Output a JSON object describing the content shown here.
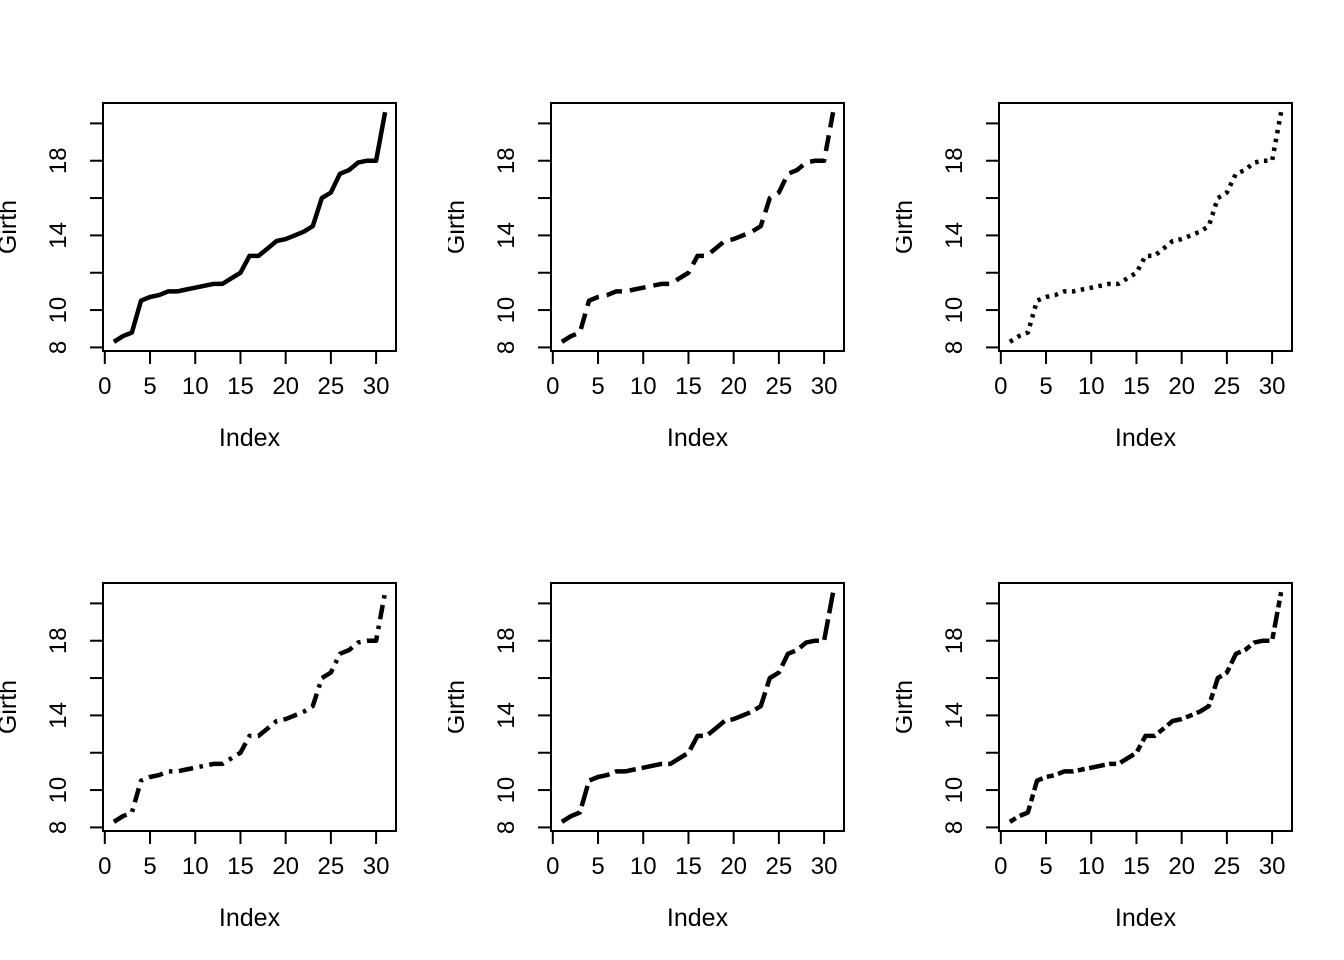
{
  "figure": {
    "background": "#ffffff",
    "line_color": "#000000",
    "rows": 2,
    "cols": 3,
    "panels": [
      {
        "id": "panel-1",
        "position": "top-left",
        "line_type": "solid"
      },
      {
        "id": "panel-2",
        "position": "top-middle",
        "line_type": "dashed"
      },
      {
        "id": "panel-3",
        "position": "top-right",
        "line_type": "dotted"
      },
      {
        "id": "panel-4",
        "position": "bottom-left",
        "line_type": "dotdash"
      },
      {
        "id": "panel-5",
        "position": "bottom-middle",
        "line_type": "longdash"
      },
      {
        "id": "panel-6",
        "position": "bottom-right",
        "line_type": "twodash"
      }
    ]
  },
  "chart_data": [
    {
      "type": "line",
      "title": "",
      "xlabel": "Index",
      "ylabel": "Girth",
      "line_type": "solid",
      "line_width": 3,
      "grid": false,
      "legend": "none",
      "xlim": [
        -0.2,
        32.2
      ],
      "ylim": [
        7.808,
        21.092
      ],
      "x_ticks": [
        0,
        5,
        10,
        15,
        20,
        25,
        30
      ],
      "x_tick_labels": [
        "0",
        "5",
        "10",
        "15",
        "20",
        "25",
        "30"
      ],
      "y_ticks": [
        8,
        10,
        12,
        14,
        16,
        18,
        20
      ],
      "y_tick_labels": [
        "8",
        "10",
        "",
        "14",
        "",
        "18",
        ""
      ],
      "x": [
        1,
        2,
        3,
        4,
        5,
        6,
        7,
        8,
        9,
        10,
        11,
        12,
        13,
        14,
        15,
        16,
        17,
        18,
        19,
        20,
        21,
        22,
        23,
        24,
        25,
        26,
        27,
        28,
        29,
        30,
        31
      ],
      "values": [
        8.3,
        8.6,
        8.8,
        10.5,
        10.7,
        10.8,
        11,
        11,
        11.1,
        11.2,
        11.3,
        11.4,
        11.4,
        11.7,
        12,
        12.9,
        12.9,
        13.3,
        13.7,
        13.8,
        14,
        14.2,
        14.5,
        16,
        16.3,
        17.3,
        17.5,
        17.9,
        18,
        18,
        20.6
      ]
    },
    {
      "type": "line",
      "title": "",
      "xlabel": "Index",
      "ylabel": "Girth",
      "line_type": "dashed",
      "line_width": 3,
      "grid": false,
      "legend": "none",
      "xlim": [
        -0.2,
        32.2
      ],
      "ylim": [
        7.808,
        21.092
      ],
      "x_ticks": [
        0,
        5,
        10,
        15,
        20,
        25,
        30
      ],
      "x_tick_labels": [
        "0",
        "5",
        "10",
        "15",
        "20",
        "25",
        "30"
      ],
      "y_ticks": [
        8,
        10,
        12,
        14,
        16,
        18,
        20
      ],
      "y_tick_labels": [
        "8",
        "10",
        "",
        "14",
        "",
        "18",
        ""
      ],
      "x": [
        1,
        2,
        3,
        4,
        5,
        6,
        7,
        8,
        9,
        10,
        11,
        12,
        13,
        14,
        15,
        16,
        17,
        18,
        19,
        20,
        21,
        22,
        23,
        24,
        25,
        26,
        27,
        28,
        29,
        30,
        31
      ],
      "values": [
        8.3,
        8.6,
        8.8,
        10.5,
        10.7,
        10.8,
        11,
        11,
        11.1,
        11.2,
        11.3,
        11.4,
        11.4,
        11.7,
        12,
        12.9,
        12.9,
        13.3,
        13.7,
        13.8,
        14,
        14.2,
        14.5,
        16,
        16.3,
        17.3,
        17.5,
        17.9,
        18,
        18,
        20.6
      ]
    },
    {
      "type": "line",
      "title": "",
      "xlabel": "Index",
      "ylabel": "Girth",
      "line_type": "dotted",
      "line_width": 3,
      "grid": false,
      "legend": "none",
      "xlim": [
        -0.2,
        32.2
      ],
      "ylim": [
        7.808,
        21.092
      ],
      "x_ticks": [
        0,
        5,
        10,
        15,
        20,
        25,
        30
      ],
      "x_tick_labels": [
        "0",
        "5",
        "10",
        "15",
        "20",
        "25",
        "30"
      ],
      "y_ticks": [
        8,
        10,
        12,
        14,
        16,
        18,
        20
      ],
      "y_tick_labels": [
        "8",
        "10",
        "",
        "14",
        "",
        "18",
        ""
      ],
      "x": [
        1,
        2,
        3,
        4,
        5,
        6,
        7,
        8,
        9,
        10,
        11,
        12,
        13,
        14,
        15,
        16,
        17,
        18,
        19,
        20,
        21,
        22,
        23,
        24,
        25,
        26,
        27,
        28,
        29,
        30,
        31
      ],
      "values": [
        8.3,
        8.6,
        8.8,
        10.5,
        10.7,
        10.8,
        11,
        11,
        11.1,
        11.2,
        11.3,
        11.4,
        11.4,
        11.7,
        12,
        12.9,
        12.9,
        13.3,
        13.7,
        13.8,
        14,
        14.2,
        14.5,
        16,
        16.3,
        17.3,
        17.5,
        17.9,
        18,
        18,
        20.6
      ]
    },
    {
      "type": "line",
      "title": "",
      "xlabel": "Index",
      "ylabel": "Girth",
      "line_type": "dotdash",
      "line_width": 3,
      "grid": false,
      "legend": "none",
      "xlim": [
        -0.2,
        32.2
      ],
      "ylim": [
        7.808,
        21.092
      ],
      "x_ticks": [
        0,
        5,
        10,
        15,
        20,
        25,
        30
      ],
      "x_tick_labels": [
        "0",
        "5",
        "10",
        "15",
        "20",
        "25",
        "30"
      ],
      "y_ticks": [
        8,
        10,
        12,
        14,
        16,
        18,
        20
      ],
      "y_tick_labels": [
        "8",
        "10",
        "",
        "14",
        "",
        "18",
        ""
      ],
      "x": [
        1,
        2,
        3,
        4,
        5,
        6,
        7,
        8,
        9,
        10,
        11,
        12,
        13,
        14,
        15,
        16,
        17,
        18,
        19,
        20,
        21,
        22,
        23,
        24,
        25,
        26,
        27,
        28,
        29,
        30,
        31
      ],
      "values": [
        8.3,
        8.6,
        8.8,
        10.5,
        10.7,
        10.8,
        11,
        11,
        11.1,
        11.2,
        11.3,
        11.4,
        11.4,
        11.7,
        12,
        12.9,
        12.9,
        13.3,
        13.7,
        13.8,
        14,
        14.2,
        14.5,
        16,
        16.3,
        17.3,
        17.5,
        17.9,
        18,
        18,
        20.6
      ]
    },
    {
      "type": "line",
      "title": "",
      "xlabel": "Index",
      "ylabel": "Girth",
      "line_type": "longdash",
      "line_width": 3,
      "grid": false,
      "legend": "none",
      "xlim": [
        -0.2,
        32.2
      ],
      "ylim": [
        7.808,
        21.092
      ],
      "x_ticks": [
        0,
        5,
        10,
        15,
        20,
        25,
        30
      ],
      "x_tick_labels": [
        "0",
        "5",
        "10",
        "15",
        "20",
        "25",
        "30"
      ],
      "y_ticks": [
        8,
        10,
        12,
        14,
        16,
        18,
        20
      ],
      "y_tick_labels": [
        "8",
        "10",
        "",
        "14",
        "",
        "18",
        ""
      ],
      "x": [
        1,
        2,
        3,
        4,
        5,
        6,
        7,
        8,
        9,
        10,
        11,
        12,
        13,
        14,
        15,
        16,
        17,
        18,
        19,
        20,
        21,
        22,
        23,
        24,
        25,
        26,
        27,
        28,
        29,
        30,
        31
      ],
      "values": [
        8.3,
        8.6,
        8.8,
        10.5,
        10.7,
        10.8,
        11,
        11,
        11.1,
        11.2,
        11.3,
        11.4,
        11.4,
        11.7,
        12,
        12.9,
        12.9,
        13.3,
        13.7,
        13.8,
        14,
        14.2,
        14.5,
        16,
        16.3,
        17.3,
        17.5,
        17.9,
        18,
        18,
        20.6
      ]
    },
    {
      "type": "line",
      "title": "",
      "xlabel": "Index",
      "ylabel": "Girth",
      "line_type": "twodash",
      "line_width": 3,
      "grid": false,
      "legend": "none",
      "xlim": [
        -0.2,
        32.2
      ],
      "ylim": [
        7.808,
        21.092
      ],
      "x_ticks": [
        0,
        5,
        10,
        15,
        20,
        25,
        30
      ],
      "x_tick_labels": [
        "0",
        "5",
        "10",
        "15",
        "20",
        "25",
        "30"
      ],
      "y_ticks": [
        8,
        10,
        12,
        14,
        16,
        18,
        20
      ],
      "y_tick_labels": [
        "8",
        "10",
        "",
        "14",
        "",
        "18",
        ""
      ],
      "x": [
        1,
        2,
        3,
        4,
        5,
        6,
        7,
        8,
        9,
        10,
        11,
        12,
        13,
        14,
        15,
        16,
        17,
        18,
        19,
        20,
        21,
        22,
        23,
        24,
        25,
        26,
        27,
        28,
        29,
        30,
        31
      ],
      "values": [
        8.3,
        8.6,
        8.8,
        10.5,
        10.7,
        10.8,
        11,
        11,
        11.1,
        11.2,
        11.3,
        11.4,
        11.4,
        11.7,
        12,
        12.9,
        12.9,
        13.3,
        13.7,
        13.8,
        14,
        14.2,
        14.5,
        16,
        16.3,
        17.3,
        17.5,
        17.9,
        18,
        18,
        20.6
      ]
    }
  ]
}
